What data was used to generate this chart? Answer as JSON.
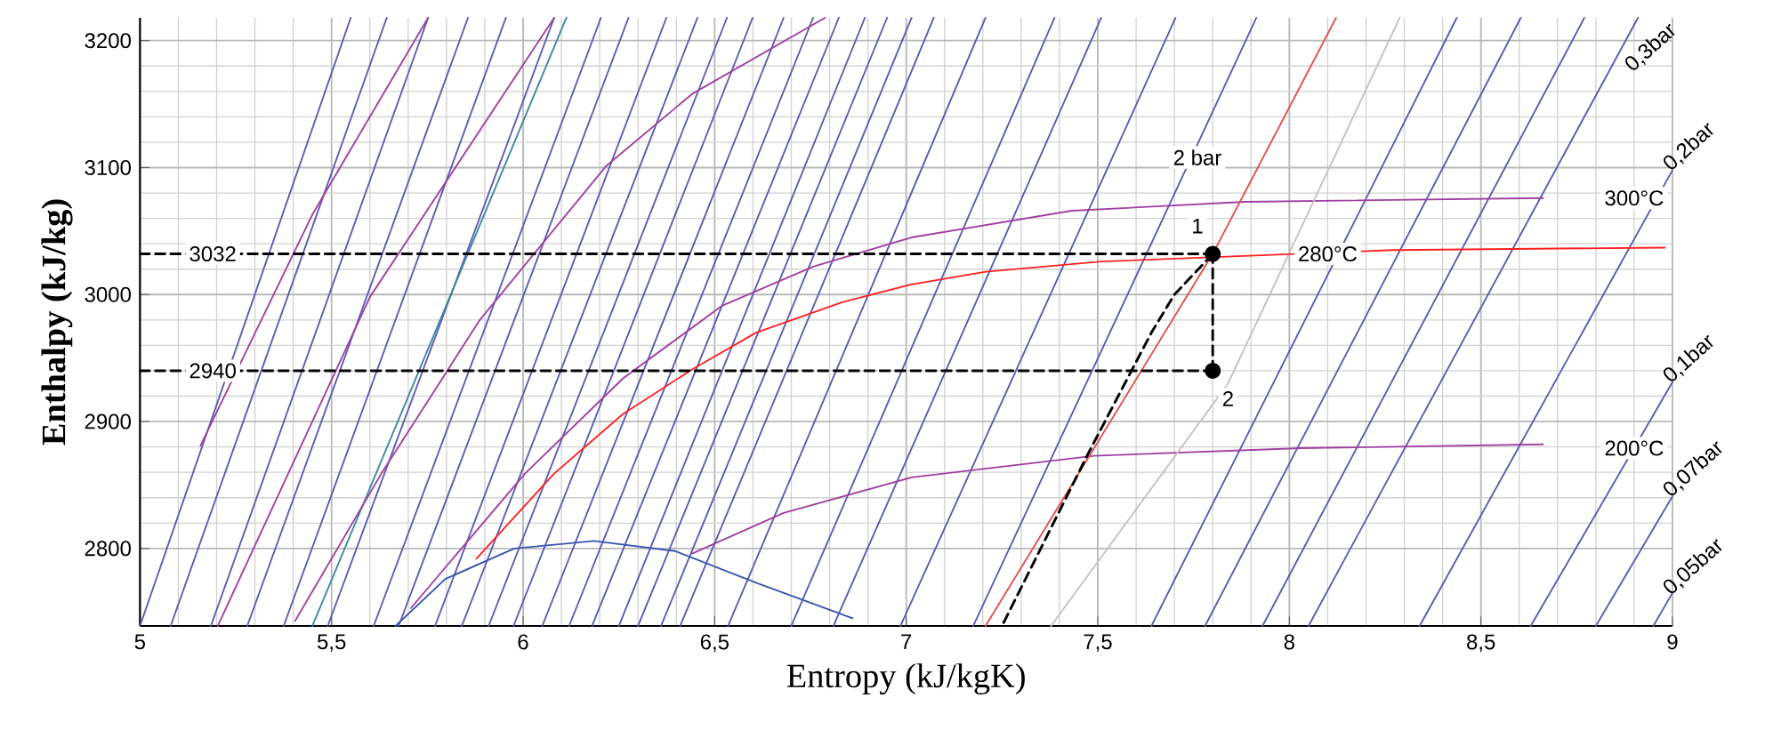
{
  "chart_data": {
    "type": "line",
    "xlabel": "Entropy (kJ/kgK)",
    "ylabel": "Enthalpy (kJ/kg)",
    "xlim": [
      5,
      9
    ],
    "ylim": [
      2739,
      3218
    ],
    "xticks": [
      5,
      {
        "value": 5.5,
        "label": "5,5"
      },
      6,
      {
        "value": 6.5,
        "label": "6,5"
      },
      7,
      {
        "value": 7.5,
        "label": "7,5"
      },
      8,
      {
        "value": 8.5,
        "label": "8,5"
      },
      9
    ],
    "yticks": [
      2800,
      2900,
      3000,
      3100,
      3200
    ],
    "grid": true,
    "marker": "none",
    "series": [
      {
        "color": "#5a5ab4",
        "x": [
          5.0,
          5.55
        ],
        "values": [
          2739,
          3218
        ]
      },
      {
        "color": "#5a5ab4",
        "x": [
          5.08,
          5.644
        ],
        "values": [
          2739,
          3218
        ]
      },
      {
        "color": "#5a5ab4",
        "x": [
          5.185,
          5.752
        ],
        "values": [
          2739,
          3218
        ]
      },
      {
        "color": "#5a5ab4",
        "x": [
          5.28,
          5.856
        ],
        "values": [
          2739,
          3218
        ]
      },
      {
        "color": "#5a5ab4",
        "x": [
          5.375,
          5.955
        ],
        "values": [
          2739,
          3218
        ]
      },
      {
        "color": "#5a5ab4",
        "x": [
          5.49,
          6.081
        ],
        "values": [
          2739,
          3218
        ]
      },
      {
        "color": "#5a5ab4",
        "x": [
          5.61,
          6.203
        ],
        "values": [
          2739,
          3218
        ]
      },
      {
        "color": "#5a5ab4",
        "x": [
          5.675,
          6.275
        ],
        "values": [
          2739,
          3218
        ]
      },
      {
        "color": "#5a5ab4",
        "x": [
          5.77,
          6.374
        ],
        "values": [
          2739,
          3218
        ]
      },
      {
        "color": "#5a5ab4",
        "x": [
          5.84,
          6.455
        ],
        "values": [
          2739,
          3218
        ]
      },
      {
        "color": "#5a5ab4",
        "x": [
          5.91,
          6.532
        ],
        "values": [
          2739,
          3218
        ]
      },
      {
        "color": "#5a5ab4",
        "x": [
          5.975,
          6.599
        ],
        "values": [
          2739,
          3218
        ]
      },
      {
        "color": "#5a5ab4",
        "x": [
          6.05,
          6.68
        ],
        "values": [
          2739,
          3218
        ]
      },
      {
        "color": "#5a5ab4",
        "x": [
          6.12,
          6.757
        ],
        "values": [
          2739,
          3218
        ]
      },
      {
        "color": "#5a5ab4",
        "x": [
          6.18,
          6.824
        ],
        "values": [
          2739,
          3218
        ]
      },
      {
        "color": "#5a5ab4",
        "x": [
          6.25,
          6.892
        ],
        "values": [
          2739,
          3218
        ]
      },
      {
        "color": "#5a5ab4",
        "x": [
          6.3,
          6.95
        ],
        "values": [
          2739,
          3218
        ]
      },
      {
        "color": "#5a5ab4",
        "x": [
          6.36,
          7.014
        ],
        "values": [
          2739,
          3218
        ]
      },
      {
        "color": "#5a5ab4",
        "x": [
          6.41,
          7.072
        ],
        "values": [
          2739,
          3218
        ]
      },
      {
        "color": "#5a5ab4",
        "x": [
          6.535,
          7.207
        ],
        "values": [
          2739,
          3218
        ]
      },
      {
        "color": "#5a5ab4",
        "x": [
          6.7,
          7.387
        ],
        "values": [
          2739,
          3218
        ]
      },
      {
        "color": "#5a5ab4",
        "x": [
          6.81,
          7.509
        ],
        "values": [
          2739,
          3218
        ]
      },
      {
        "color": "#5a5ab4",
        "x": [
          6.985,
          7.703
        ],
        "values": [
          2739,
          3218
        ]
      },
      {
        "color": "#5a5ab4",
        "x": [
          7.175,
          7.914
        ],
        "values": [
          2739,
          3218
        ]
      },
      {
        "color": "#5a5ab4",
        "x": [
          7.64,
          8.437
        ],
        "values": [
          2739,
          3218
        ]
      },
      {
        "color": "#5a5ab4",
        "x": [
          7.78,
          8.604
        ],
        "values": [
          2739,
          3218
        ]
      },
      {
        "color": "#5a5ab4",
        "x": [
          7.93,
          8.77
        ],
        "values": [
          2739,
          3218
        ]
      },
      {
        "color": "#5a5ab4",
        "x": [
          8.05,
          8.91
        ],
        "values": [
          2739,
          3218
        ]
      },
      {
        "color": "#5a5ab4",
        "x": [
          8.34,
          9
        ],
        "values": [
          2739,
          3098
        ]
      },
      {
        "color": "#5a5ab4",
        "x": [
          8.63,
          9
        ],
        "values": [
          2739,
          2931
        ]
      },
      {
        "color": "#5a5ab4",
        "x": [
          8.8,
          9
        ],
        "values": [
          2739,
          2841
        ]
      },
      {
        "color": "#5a5ab4",
        "x": [
          8.95,
          9
        ],
        "values": [
          2739,
          2765
        ]
      },
      {
        "color": "#3a8aa0",
        "x": [
          5.45,
          6.113
        ],
        "values": [
          2739,
          3218
        ]
      },
      {
        "color": "#a040a0",
        "x": [
          5.158,
          5.45,
          5.752
        ],
        "values": [
          2881,
          3063,
          3218
        ]
      },
      {
        "color": "#a040a0",
        "x": [
          5.203,
          5.6,
          6.081
        ],
        "values": [
          2739,
          2998,
          3218
        ]
      },
      {
        "color": "#a040a0",
        "x": [
          5.405,
          5.63,
          5.887,
          6.216,
          6.441,
          6.788
        ],
        "values": [
          2743,
          2859,
          2980,
          3101,
          3158,
          3218
        ]
      },
      {
        "color": "#a040a0",
        "x": [
          5.707,
          6.005,
          6.261,
          6.518,
          6.757,
          7.014,
          7.432,
          7.883,
          8.662
        ],
        "values": [
          2753,
          2859,
          2934,
          2991,
          3022,
          3045,
          3066,
          3073,
          3076
        ]
      },
      {
        "color": "#a040a0",
        "x": [
          6.441,
          6.68,
          7.014,
          7.491,
          8.03,
          8.662
        ],
        "values": [
          2796,
          2828,
          2856,
          2873,
          2879,
          2882
        ]
      },
      {
        "color": "#3a55b0",
        "x": [
          5.667,
          5.797,
          5.977,
          6.185,
          6.396,
          6.608,
          6.86
        ],
        "values": [
          2739,
          2776,
          2800,
          2806,
          2798,
          2773,
          2745
        ]
      },
      {
        "color": "#c8c0c0",
        "x": [
          7.378,
          7.84,
          8.288
        ],
        "values": [
          2739,
          2930,
          3218
        ]
      },
      {
        "color": "#e05050",
        "x": [
          7.207,
          7.8,
          8.122
        ],
        "values": [
          2739,
          3032,
          3218
        ]
      },
      {
        "color": "#ff2020",
        "x": [
          5.878,
          6.081,
          6.261,
          6.441,
          6.608,
          6.833,
          7.014,
          7.207,
          7.509,
          7.8,
          8.27,
          8.98
        ],
        "values": [
          2792,
          2859,
          2906,
          2941,
          2970,
          2994,
          3008,
          3018,
          3026,
          null,
          3035,
          3037
        ]
      },
      {
        "color": "#000000",
        "line_style": "dashed",
        "x": [
          5,
          7.8
        ],
        "values": [
          3032,
          3032
        ]
      },
      {
        "color": "#000000",
        "line_style": "dashed",
        "x": [
          5,
          7.8
        ],
        "values": [
          2940,
          2940
        ]
      },
      {
        "color": "#000000",
        "line_style": "dashed",
        "x": [
          7.8,
          7.8
        ],
        "values": [
          2940,
          3032
        ]
      },
      {
        "color": "#000000",
        "line_style": "dashed",
        "x": [
          7.8,
          7.7,
          7.64,
          7.477,
          7.25
        ],
        "values": [
          3032,
          3000,
          2970,
          2876,
          2739
        ]
      },
      {
        "type": "scatter",
        "color": "#000000",
        "marker": "circle",
        "x": [
          7.8,
          7.8
        ],
        "values": [
          3032,
          2940
        ]
      }
    ],
    "annotations": [
      {
        "text": "3032",
        "x": 5.19,
        "y": 3032
      },
      {
        "text": "2940",
        "x": 5.19,
        "y": 2940
      },
      {
        "text": "1",
        "x": 7.76,
        "y": 3054
      },
      {
        "text": "2",
        "x": 7.84,
        "y": 2918
      },
      {
        "text": "2 bar",
        "x": 7.76,
        "y": 3108
      },
      {
        "text": "300°C",
        "x": 8.9,
        "y": 3076
      },
      {
        "text": "280°C",
        "x": 8.1,
        "y": 3032
      },
      {
        "text": "200°C",
        "x": 8.9,
        "y": 2879
      },
      "0,3bar",
      {
        "text": "0,2bar",
        "x": 9,
        "y": 3092
      },
      {
        "text": "0,1bar",
        "x": 9,
        "y": 2925
      },
      {
        "text": "0,07bar",
        "x": 9,
        "y": 2835
      },
      {
        "text": "0,05bar",
        "x": 9,
        "y": 2758
      }
    ]
  }
}
